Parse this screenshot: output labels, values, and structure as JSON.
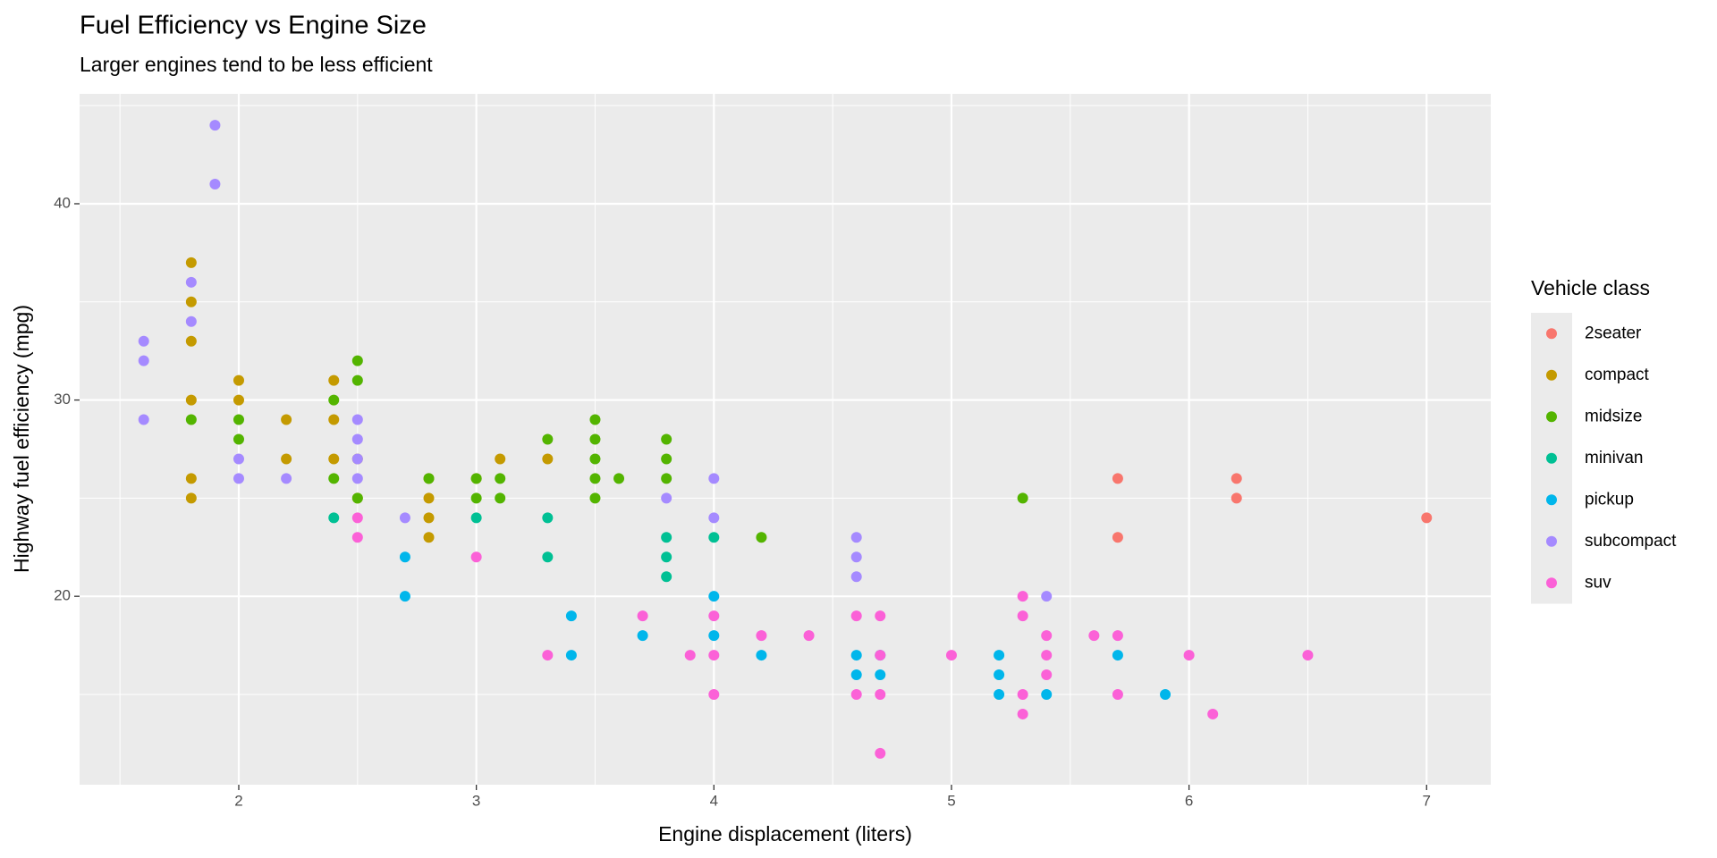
{
  "chart_data": {
    "type": "scatter",
    "title": "Fuel Efficiency vs Engine Size",
    "subtitle": "Larger engines tend to be less efficient",
    "x_label": "Engine displacement (liters)",
    "y_label": "Highway fuel efficiency (mpg)",
    "legend_title": "Vehicle class",
    "legend_position": "right",
    "grid": true,
    "xlim": [
      1.33,
      7.27
    ],
    "ylim": [
      10.4,
      45.6
    ],
    "xticks": [
      2,
      3,
      4,
      5,
      6,
      7
    ],
    "yticks": [
      20,
      30,
      40
    ],
    "x_minor_breaks": [
      1.5,
      2.5,
      3.5,
      4.5,
      5.5,
      6.5
    ],
    "y_minor_breaks": [
      15,
      25,
      35,
      45
    ],
    "series": [
      {
        "name": "2seater",
        "color": "#F8766D",
        "x": [
          5.7,
          5.7,
          6.2,
          6.2,
          7
        ],
        "values": [
          26,
          23,
          26,
          25,
          24
        ]
      },
      {
        "name": "compact",
        "color": "#C49A00",
        "x": [
          1.8,
          1.8,
          1.8,
          1.8,
          1.8,
          1.8,
          2,
          2,
          2.2,
          2.2,
          2.4,
          2.4,
          2.4,
          2.5,
          2.5,
          2.8,
          2.8,
          2.8,
          2.8,
          3,
          3.1,
          3.3
        ],
        "values": [
          37,
          35,
          33,
          30,
          26,
          25,
          31,
          30,
          29,
          27,
          31,
          29,
          27,
          27,
          25,
          26,
          25,
          24,
          23,
          26,
          27,
          27
        ]
      },
      {
        "name": "midsize",
        "color": "#53B400",
        "x": [
          1.8,
          2,
          2,
          2.4,
          2.4,
          2.5,
          2.5,
          2.5,
          2.8,
          3,
          3,
          3.1,
          3.1,
          3.3,
          3.5,
          3.5,
          3.5,
          3.5,
          3.5,
          3.6,
          3.8,
          3.8,
          3.8,
          4.2,
          5.3
        ],
        "values": [
          29,
          29,
          28,
          30,
          26,
          32,
          31,
          25,
          26,
          26,
          25,
          26,
          25,
          28,
          29,
          28,
          27,
          26,
          25,
          26,
          28,
          27,
          26,
          23,
          25
        ]
      },
      {
        "name": "minivan",
        "color": "#00C094",
        "x": [
          2.4,
          3,
          3.3,
          3.3,
          3.8,
          3.8,
          3.8,
          4
        ],
        "values": [
          24,
          24,
          24,
          22,
          23,
          22,
          21,
          23
        ]
      },
      {
        "name": "pickup",
        "color": "#00B6EB",
        "x": [
          2.7,
          2.7,
          3.4,
          3.4,
          3.7,
          4,
          4,
          4.2,
          4.6,
          4.6,
          4.7,
          4.7,
          5.2,
          5.2,
          5.2,
          5.4,
          5.7,
          5.9
        ],
        "values": [
          22,
          20,
          19,
          17,
          18,
          20,
          18,
          17,
          17,
          16,
          17,
          16,
          17,
          16,
          15,
          15,
          17,
          15
        ]
      },
      {
        "name": "subcompact",
        "color": "#A58AFF",
        "x": [
          1.6,
          1.6,
          1.6,
          1.8,
          1.8,
          1.9,
          1.9,
          2,
          2,
          2.2,
          2.5,
          2.5,
          2.5,
          2.5,
          2.7,
          3.8,
          4,
          4,
          4.6,
          4.6,
          4.6,
          5.4
        ],
        "values": [
          33,
          32,
          29,
          36,
          34,
          44,
          41,
          27,
          26,
          26,
          29,
          28,
          27,
          26,
          24,
          25,
          26,
          24,
          23,
          22,
          21,
          20
        ]
      },
      {
        "name": "suv",
        "color": "#FB61D7",
        "x": [
          2.5,
          2.5,
          3,
          3.3,
          3.7,
          3.9,
          4,
          4,
          4,
          4.2,
          4.4,
          4.6,
          4.6,
          4.7,
          4.7,
          4.7,
          4.7,
          5,
          5.3,
          5.3,
          5.3,
          5.3,
          5.4,
          5.4,
          5.4,
          5.6,
          5.7,
          5.7,
          6,
          6.1,
          6.5
        ],
        "values": [
          24,
          23,
          22,
          17,
          19,
          17,
          19,
          17,
          15,
          18,
          18,
          19,
          15,
          19,
          17,
          15,
          12,
          17,
          20,
          19,
          15,
          14,
          18,
          17,
          16,
          18,
          18,
          15,
          17,
          14,
          17
        ]
      }
    ]
  }
}
